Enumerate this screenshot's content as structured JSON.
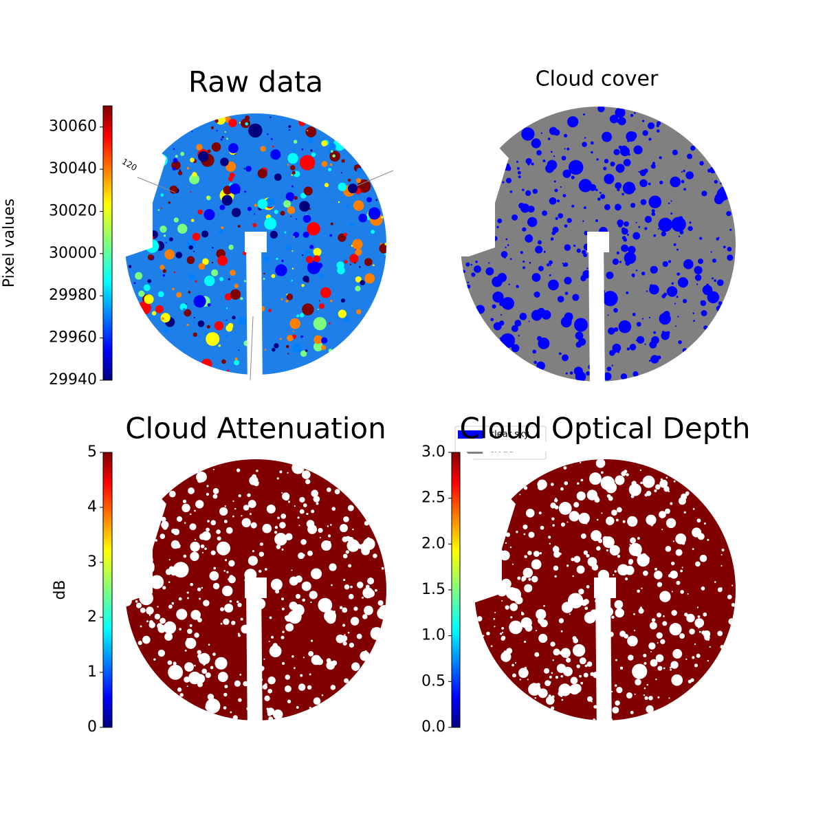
{
  "chart_data": [
    {
      "type": "image",
      "title": "Raw data",
      "annotation": "120",
      "colorbar": {
        "label": "Pixel values",
        "colormap": "jet",
        "ylim": [
          29940,
          30070
        ],
        "yticks": [
          29940,
          29960,
          29980,
          30000,
          30020,
          30040,
          30060
        ]
      }
    },
    {
      "type": "image",
      "title": "Cloud cover",
      "series": [
        {
          "name": "clear sky",
          "color": "#0000ff"
        },
        {
          "name": "cloud",
          "color": "#808080"
        }
      ]
    },
    {
      "type": "image",
      "title": "Cloud Attenuation",
      "color": "#800000",
      "colorbar": {
        "label": "dB",
        "colormap": "jet",
        "ylim": [
          0,
          5
        ],
        "yticks": [
          0,
          1,
          2,
          3,
          4,
          5
        ]
      }
    },
    {
      "type": "image",
      "title": "Cloud Optical Depth",
      "color": "#800000",
      "colorbar": {
        "colormap": "jet",
        "ylim": [
          0,
          3
        ],
        "yticks": [
          {
            "value": 0,
            "label": "0.0"
          },
          0.5,
          {
            "value": 1,
            "label": "1.0"
          },
          1.5,
          {
            "value": 2,
            "label": "2.0"
          },
          2.5,
          {
            "value": 3,
            "label": "3.0"
          }
        ]
      }
    }
  ]
}
